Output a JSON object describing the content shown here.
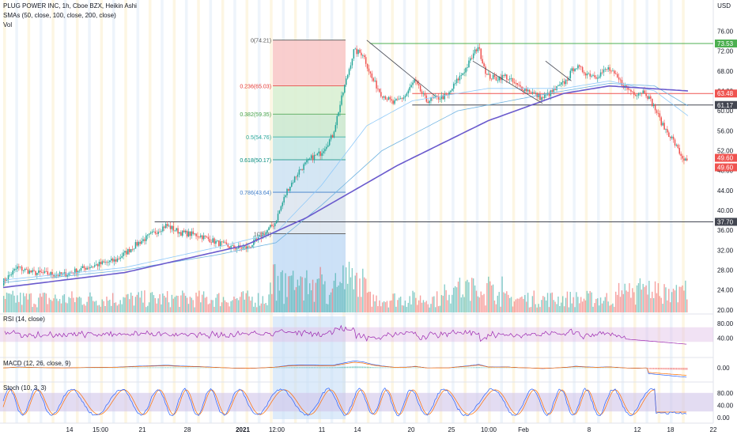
{
  "header": {
    "title": "PLUG POWER INC, 1h, Cboe BZX, Heikin Ashi",
    "smas": "SMAs (50, close, 100, close, 200, close)",
    "vol": "Vol",
    "currency": "USD"
  },
  "colors": {
    "up": "#26a69a",
    "down": "#ef5350",
    "sma50": "#2962ff",
    "sma100": "#6fb3e0",
    "sma200": "#6a5acd",
    "rsi": "#9c27b0",
    "macd": "#2962ff",
    "signal": "#ff6d00",
    "stoch_k": "#2962ff",
    "stoch_d": "#ff6d00"
  },
  "chart_data": {
    "type": "candlestick",
    "x_tick_labels": [
      "14",
      "15:00",
      "21",
      "28",
      "2021",
      "12:00",
      "11",
      "14",
      "20",
      "25",
      "10:00",
      "Feb",
      "8",
      "12",
      "18",
      "22"
    ],
    "y_ticks": [
      "76.00",
      "72.00",
      "68.00",
      "64.00",
      "60.00",
      "56.00",
      "52.00",
      "48.00",
      "44.00",
      "40.00",
      "36.00",
      "32.00",
      "28.00",
      "24.00",
      "20.00"
    ],
    "ylim": [
      19.5,
      77.5
    ],
    "price_anchors": [
      [
        0,
        25.5
      ],
      [
        10,
        28.5
      ],
      [
        20,
        27.5
      ],
      [
        40,
        27.0
      ],
      [
        55,
        28.5
      ],
      [
        75,
        30.0
      ],
      [
        90,
        33.5
      ],
      [
        108,
        37.0
      ],
      [
        118,
        35.5
      ],
      [
        130,
        35.0
      ],
      [
        142,
        33.5
      ],
      [
        152,
        32.5
      ],
      [
        162,
        32.5
      ],
      [
        172,
        35.0
      ],
      [
        180,
        37.5
      ],
      [
        188,
        44.0
      ],
      [
        196,
        48.0
      ],
      [
        204,
        50.5
      ],
      [
        210,
        51.5
      ],
      [
        218,
        55.0
      ],
      [
        226,
        65.0
      ],
      [
        232,
        72.0
      ],
      [
        238,
        71.5
      ],
      [
        244,
        66.5
      ],
      [
        250,
        63.5
      ],
      [
        258,
        61.5
      ],
      [
        266,
        63.0
      ],
      [
        272,
        66.0
      ],
      [
        280,
        62.0
      ],
      [
        286,
        62.5
      ],
      [
        294,
        63.0
      ],
      [
        300,
        66.0
      ],
      [
        306,
        68.5
      ],
      [
        314,
        73.0
      ],
      [
        320,
        67.0
      ],
      [
        326,
        66.5
      ],
      [
        332,
        67.0
      ],
      [
        340,
        65.0
      ],
      [
        348,
        64.0
      ],
      [
        356,
        62.5
      ],
      [
        364,
        64.0
      ],
      [
        372,
        66.0
      ],
      [
        378,
        69.0
      ],
      [
        386,
        67.5
      ],
      [
        392,
        67.0
      ],
      [
        400,
        68.5
      ],
      [
        406,
        66.5
      ],
      [
        412,
        64.5
      ],
      [
        418,
        63.5
      ],
      [
        424,
        64.0
      ],
      [
        430,
        61.0
      ],
      [
        436,
        57.0
      ],
      [
        442,
        54.5
      ],
      [
        448,
        51.0
      ],
      [
        452,
        49.6
      ]
    ],
    "sma200_anchors": [
      [
        0,
        24.5
      ],
      [
        80,
        27.5
      ],
      [
        160,
        33.0
      ],
      [
        200,
        38.5
      ],
      [
        260,
        49.0
      ],
      [
        320,
        58.0
      ],
      [
        370,
        63.5
      ],
      [
        400,
        65.0
      ],
      [
        452,
        64.0
      ]
    ],
    "sma50_anchors": [
      [
        0,
        26.0
      ],
      [
        80,
        28.5
      ],
      [
        140,
        32.5
      ],
      [
        180,
        35.5
      ],
      [
        210,
        45.0
      ],
      [
        240,
        57.0
      ],
      [
        270,
        62.0
      ],
      [
        320,
        64.5
      ],
      [
        370,
        64.5
      ],
      [
        400,
        66.0
      ],
      [
        430,
        64.0
      ],
      [
        452,
        59.0
      ]
    ],
    "sma100_anchors": [
      [
        0,
        25.5
      ],
      [
        80,
        28.0
      ],
      [
        140,
        31.0
      ],
      [
        180,
        33.5
      ],
      [
        210,
        41.0
      ],
      [
        250,
        52.0
      ],
      [
        300,
        60.0
      ],
      [
        360,
        63.5
      ],
      [
        400,
        65.5
      ],
      [
        430,
        65.0
      ],
      [
        452,
        61.0
      ]
    ],
    "fib": {
      "levels": [
        {
          "label": "0(74.21)",
          "value": 74.21,
          "fill": "#f8c9c9"
        },
        {
          "label": "0.236(65.03)",
          "value": 65.03,
          "fill": "#d9f0d3"
        },
        {
          "label": "0.382(59.35)",
          "value": 59.35,
          "fill": "#cde9d0"
        },
        {
          "label": "0.5(54.76)",
          "value": 54.76,
          "fill": "#c7e8e4"
        },
        {
          "label": "0.618(50.17)",
          "value": 50.17,
          "fill": "#cfe3f3"
        },
        {
          "label": "0.786(43.64)",
          "value": 43.64,
          "fill": "#dde6ef"
        },
        {
          "label": "1(35.3)",
          "value": 35.3,
          "fill": "#c7def6"
        }
      ],
      "label_colors": [
        "#555555",
        "#e53935",
        "#43a047",
        "#26a69a",
        "#00897b",
        "#3d7cc9",
        "#555555"
      ]
    },
    "horizontal_lines": [
      {
        "value": 73.53,
        "color": "#4caf50",
        "label": "73.53"
      },
      {
        "value": 63.48,
        "color": "#ef5350",
        "label": "63.48"
      },
      {
        "value": 61.17,
        "color": "#434651",
        "label": "61.17"
      },
      {
        "value": 37.7,
        "color": "#434651",
        "label": "37.70"
      }
    ],
    "price_labels": [
      {
        "value": 49.6,
        "label": "49.60",
        "color": "#ef5350"
      },
      {
        "value": 49.6,
        "label": "49.60",
        "color": "#ef5350"
      }
    ],
    "trendlines": [
      {
        "from": [
          240,
          74.2
        ],
        "to": [
          285,
          63.0
        ]
      },
      {
        "from": [
          310,
          70.0
        ],
        "to": [
          356,
          61.5
        ]
      },
      {
        "from": [
          358,
          70.0
        ],
        "to": [
          375,
          66.0
        ]
      }
    ],
    "rsi": {
      "label": "RSI (14, close)",
      "ticks": [
        "80.00",
        "40.00"
      ],
      "ylim": [
        0,
        100
      ]
    },
    "macd": {
      "label": "MACD (12, 26, close, 9)",
      "ticks": [
        "0.00",
        "-10.00"
      ]
    },
    "stoch": {
      "label": "Stoch (10, 3, 3)",
      "ticks": [
        "80.00",
        "40.00",
        "0.00"
      ],
      "ylim": [
        -5,
        105
      ]
    }
  }
}
